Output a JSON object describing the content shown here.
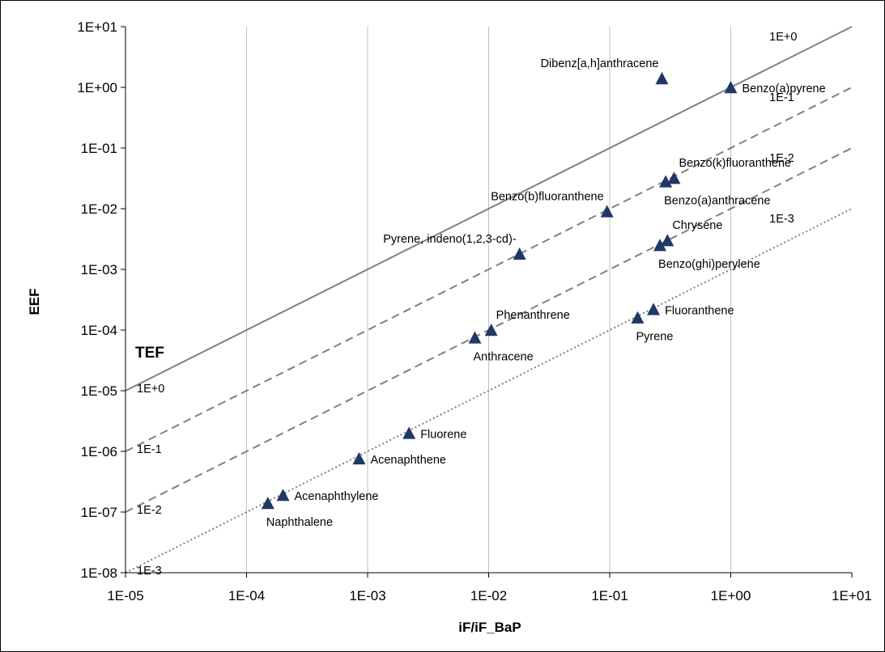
{
  "chart_data": {
    "type": "scatter",
    "title": "",
    "xlabel": "iF/iF_BaP",
    "ylabel": "EEF",
    "xscale": "log",
    "yscale": "log",
    "xlim": [
      1e-05,
      10
    ],
    "ylim": [
      1e-08,
      10
    ],
    "x_ticks": [
      1e-05,
      0.0001,
      0.001,
      0.01,
      0.1,
      1,
      10
    ],
    "x_tick_labels": [
      "1E-05",
      "1E-04",
      "1E-03",
      "1E-02",
      "1E-01",
      "1E+00",
      "1E+01"
    ],
    "y_ticks": [
      10,
      1,
      0.1,
      0.01,
      0.001,
      0.0001,
      1e-05,
      1e-06,
      1e-07,
      1e-08
    ],
    "y_tick_labels": [
      "1E+01",
      "1E+00",
      "1E-01",
      "1E-02",
      "1E-03",
      "1E-04",
      "1E-05",
      "1E-06",
      "1E-07",
      "1E-08"
    ],
    "grid": "vertical",
    "marker_color": "#1f3864",
    "annotation": "TEF",
    "reference_lines": [
      {
        "tef": 1,
        "style": "solid",
        "color": "#808080",
        "left_label": "1E+0",
        "right_label": "1E+0"
      },
      {
        "tef": 0.1,
        "style": "dashed",
        "color": "#808080",
        "left_label": "1E-1",
        "right_label": "1E-1"
      },
      {
        "tef": 0.01,
        "style": "dashed",
        "color": "#808080",
        "left_label": "1E-2",
        "right_label": "1E-2"
      },
      {
        "tef": 0.001,
        "style": "dotted",
        "color": "#808080",
        "left_label": "1E-3",
        "right_label": "1E-3"
      }
    ],
    "points": [
      {
        "label": "Dibenz[a,h]anthracene",
        "x": 0.27,
        "y": 1.4,
        "pos": "above-left"
      },
      {
        "label": "Benzo(a)pyrene",
        "x": 1.0,
        "y": 1.0,
        "pos": "right"
      },
      {
        "label": "Benzo(k)fluoranthene",
        "x": 0.34,
        "y": 0.032,
        "pos": "above-right"
      },
      {
        "label": "Benzo(a)anthracene",
        "x": 0.29,
        "y": 0.028,
        "pos": "below-right"
      },
      {
        "label": "Benzo(b)fluoranthene",
        "x": 0.095,
        "y": 0.009,
        "pos": "above-left"
      },
      {
        "label": "Chrysene",
        "x": 0.3,
        "y": 0.003,
        "pos": "above-right"
      },
      {
        "label": "Benzo(ghi)perylene",
        "x": 0.26,
        "y": 0.0025,
        "pos": "below-right"
      },
      {
        "label": "Pyrene, indeno(1,2,3-cd)-",
        "x": 0.018,
        "y": 0.0018,
        "pos": "above-left"
      },
      {
        "label": "Phenanthrene",
        "x": 0.0105,
        "y": 0.0001,
        "pos": "above-right"
      },
      {
        "label": "Anthracene",
        "x": 0.0077,
        "y": 7.5e-05,
        "pos": "below-right"
      },
      {
        "label": "Fluoranthene",
        "x": 0.23,
        "y": 0.00022,
        "pos": "right"
      },
      {
        "label": "Pyrene",
        "x": 0.17,
        "y": 0.00016,
        "pos": "below-right"
      },
      {
        "label": "Fluorene",
        "x": 0.0022,
        "y": 2e-06,
        "pos": "right"
      },
      {
        "label": "Acenaphthene",
        "x": 0.00085,
        "y": 7.6e-07,
        "pos": "right"
      },
      {
        "label": "Acenaphthylene",
        "x": 0.0002,
        "y": 1.9e-07,
        "pos": "right"
      },
      {
        "label": "Naphthalene",
        "x": 0.00015,
        "y": 1.4e-07,
        "pos": "below-right"
      }
    ]
  }
}
